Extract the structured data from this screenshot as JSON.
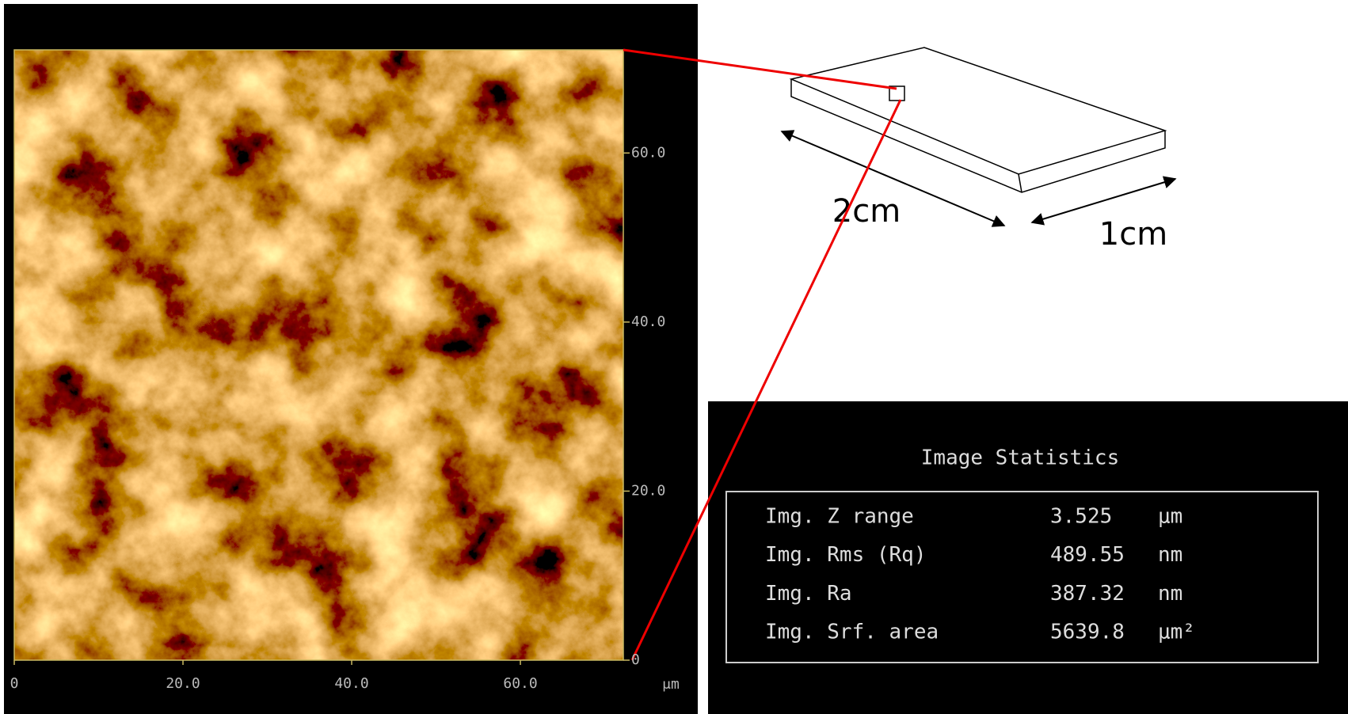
{
  "afm_image": {
    "xlim": [
      0,
      72.2
    ],
    "ylim": [
      0,
      72.2
    ],
    "xticks": [
      0,
      {
        "value": 20,
        "label": "20.0"
      },
      {
        "value": 40,
        "label": "40.0"
      },
      {
        "value": 60,
        "label": "60.0"
      }
    ],
    "yticks": [
      0,
      {
        "value": 20,
        "label": "20.0"
      },
      {
        "value": 40,
        "label": "40.0"
      },
      {
        "value": 60,
        "label": "60.0"
      }
    ],
    "unit": "μm"
  },
  "sample": {
    "length_label": "2cm",
    "width_label": "1cm"
  },
  "statistics": {
    "title": "Image Statistics",
    "rows": [
      {
        "label": "Img. Z range",
        "value": 3.525,
        "unit": "μm"
      },
      {
        "label": "Img. Rms (Rq)",
        "value": 489.55,
        "unit": "nm"
      },
      {
        "label": "Img. Ra",
        "value": 387.32,
        "unit": "nm"
      },
      {
        "label": "Img. Srf. area",
        "value": 5639.8,
        "unit": "μm²"
      }
    ]
  }
}
